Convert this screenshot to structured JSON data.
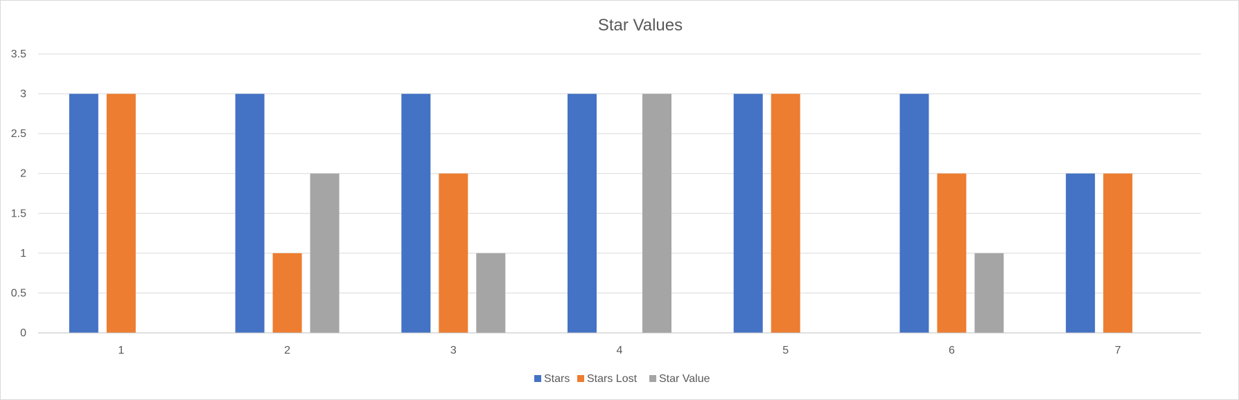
{
  "chart_data": {
    "type": "bar",
    "title": "Star Values",
    "xlabel": "",
    "ylabel": "",
    "categories": [
      "1",
      "2",
      "3",
      "4",
      "5",
      "6",
      "7"
    ],
    "ylim": [
      0,
      3.5
    ],
    "yticks": [
      "0",
      "0.5",
      "1",
      "1.5",
      "2",
      "2.5",
      "3",
      "3.5"
    ],
    "grid": true,
    "legend_position": "bottom",
    "series": [
      {
        "name": "Stars",
        "color": "#4472C4",
        "values": [
          3,
          3,
          3,
          3,
          3,
          3,
          2
        ]
      },
      {
        "name": "Stars Lost",
        "color": "#ED7D31",
        "values": [
          3,
          1,
          2,
          0,
          3,
          2,
          2
        ]
      },
      {
        "name": "Star Value",
        "color": "#A5A5A5",
        "values": [
          0,
          2,
          1,
          3,
          0,
          1,
          0
        ]
      }
    ]
  }
}
